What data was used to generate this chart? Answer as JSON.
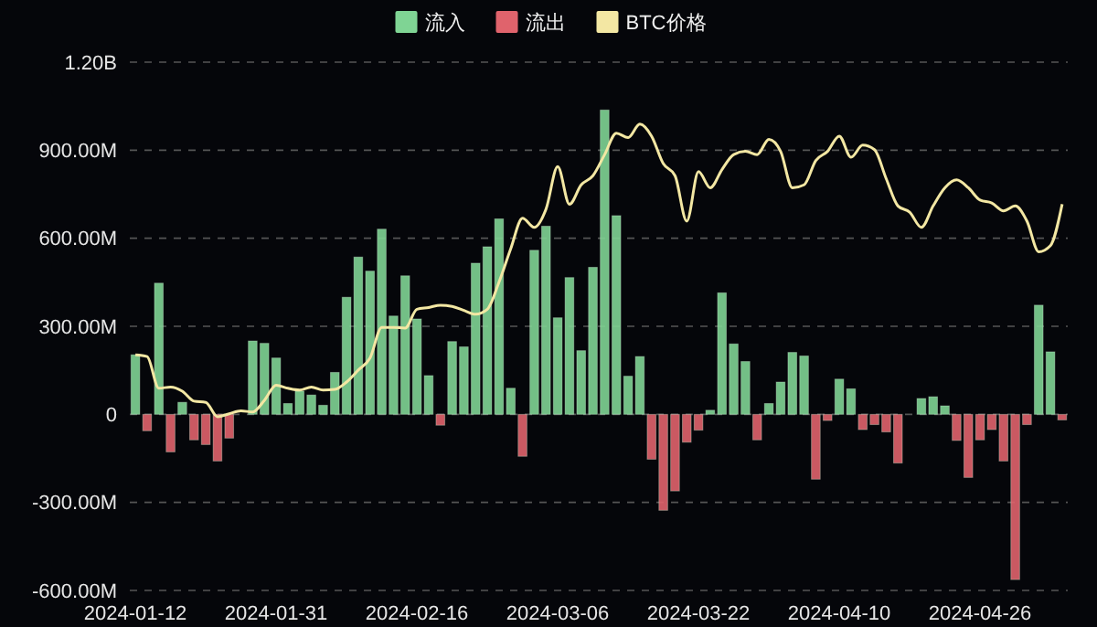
{
  "chart_data": {
    "type": "bar",
    "stacked": true,
    "categories": [
      "2024-01-12",
      null,
      null,
      null,
      null,
      null,
      null,
      null,
      null,
      null,
      null,
      null,
      "2024-01-31",
      null,
      null,
      null,
      null,
      null,
      null,
      null,
      null,
      null,
      null,
      null,
      "2024-02-16",
      null,
      null,
      null,
      null,
      null,
      null,
      null,
      null,
      null,
      null,
      null,
      "2024-03-06",
      null,
      null,
      null,
      null,
      null,
      null,
      null,
      null,
      null,
      null,
      null,
      "2024-03-22",
      null,
      null,
      null,
      null,
      null,
      null,
      null,
      null,
      null,
      null,
      null,
      "2024-04-10",
      null,
      null,
      null,
      null,
      null,
      null,
      null,
      null,
      null,
      null,
      null,
      "2024-04-26",
      null,
      null,
      null,
      null,
      null,
      null,
      null
    ],
    "series": [
      {
        "name": "流入",
        "color": "#7fd494",
        "values": [
          203000000,
          null,
          447000000,
          null,
          41000000,
          null,
          null,
          null,
          null,
          null,
          250000000,
          242000000,
          192000000,
          37000000,
          79000000,
          66000000,
          31000000,
          143000000,
          399000000,
          536000000,
          488000000,
          631000000,
          335000000,
          472000000,
          325000000,
          132000000,
          null,
          248000000,
          230000000,
          515000000,
          571000000,
          666000000,
          89000000,
          null,
          559000000,
          641000000,
          329000000,
          466000000,
          217000000,
          501000000,
          1037000000,
          677000000,
          130000000,
          197000000,
          null,
          null,
          null,
          null,
          null,
          14000000,
          414000000,
          240000000,
          180000000,
          null,
          37000000,
          110000000,
          211000000,
          199000000,
          null,
          null,
          120000000,
          87000000,
          null,
          null,
          null,
          null,
          null,
          54000000,
          60000000,
          29000000,
          null,
          null,
          null,
          null,
          null,
          null,
          null,
          372000000,
          213000000,
          null
        ]
      },
      {
        "name": "流出",
        "color": "#e0636c",
        "values": [
          null,
          -56000000,
          null,
          -128000000,
          null,
          -87000000,
          -103000000,
          -159000000,
          -81000000,
          null,
          null,
          null,
          null,
          null,
          null,
          null,
          null,
          null,
          null,
          null,
          null,
          null,
          null,
          null,
          null,
          null,
          -37000000,
          null,
          null,
          null,
          null,
          null,
          null,
          -143000000,
          null,
          null,
          null,
          null,
          null,
          null,
          null,
          null,
          null,
          null,
          -153000000,
          -327000000,
          -261000000,
          -95000000,
          -54000000,
          null,
          null,
          null,
          null,
          -87000000,
          null,
          null,
          null,
          null,
          -221000000,
          -21000000,
          null,
          null,
          -52000000,
          -35000000,
          -60000000,
          -166000000,
          null,
          null,
          null,
          null,
          -89000000,
          -215000000,
          -87000000,
          -52000000,
          -159000000,
          -563000000,
          -35000000,
          null,
          null,
          -19000000
        ]
      },
      {
        "name": "BTC价格",
        "type": "line",
        "color": "#f3e7a3",
        "values": [
          203000000,
          197000000,
          89000000,
          93000000,
          79000000,
          45000000,
          41000000,
          -8000000,
          2000000,
          12000000,
          8000000,
          48000000,
          99000000,
          89000000,
          83000000,
          93000000,
          83000000,
          85000000,
          110000000,
          151000000,
          192000000,
          296000000,
          296000000,
          294000000,
          358000000,
          364000000,
          372000000,
          368000000,
          354000000,
          341000000,
          358000000,
          451000000,
          565000000,
          668000000,
          637000000,
          699000000,
          844000000,
          716000000,
          782000000,
          813000000,
          885000000,
          958000000,
          943000000,
          989000000,
          948000000,
          854000000,
          813000000,
          658000000,
          827000000,
          772000000,
          834000000,
          885000000,
          896000000,
          885000000,
          937000000,
          896000000,
          772000000,
          782000000,
          865000000,
          896000000,
          948000000,
          876000000,
          917000000,
          902000000,
          803000000,
          710000000,
          689000000,
          637000000,
          710000000,
          772000000,
          799000000,
          772000000,
          730000000,
          720000000,
          693000000,
          710000000,
          658000000,
          554000000,
          575000000,
          716000000
        ]
      }
    ],
    "ylim": [
      -600000000,
      1200000000
    ],
    "yticks": [
      {
        "value": -600000000,
        "label": "-600.00M"
      },
      {
        "value": -300000000,
        "label": "-300.00M"
      },
      0,
      {
        "value": 300000000,
        "label": "300.00M"
      },
      {
        "value": 600000000,
        "label": "600.00M"
      },
      {
        "value": 900000000,
        "label": "900.00M"
      },
      {
        "value": 1200000000,
        "label": "1.20B"
      }
    ],
    "grid": "y",
    "legend": "top",
    "marker": "none",
    "line_style": "solid"
  }
}
